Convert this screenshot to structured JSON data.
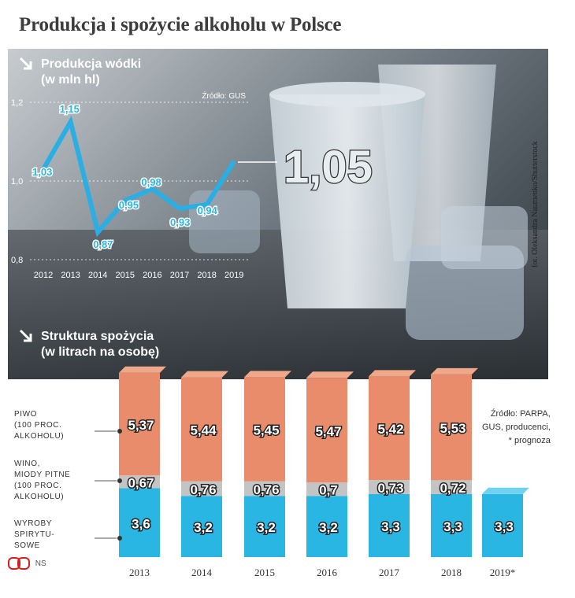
{
  "title": "Produkcja i spożycie alkoholu w Polsce",
  "credit": "fot. Oleksandra Naumenko/Shutterstock",
  "big_value": "1,05",
  "logo_text": "NS",
  "colors": {
    "line": "#2aaee3",
    "beer": "#e98c6b",
    "beer_top": "#f0a88a",
    "wine": "#c4c4c4",
    "spirits": "#29b6e2",
    "spirits_top": "#6fd3f0"
  },
  "chart_data": [
    {
      "type": "line",
      "title": "Produkcja wódki",
      "subtitle": "(w mln hl)",
      "source": "Źródło: GUS",
      "x": [
        "2012",
        "2013",
        "2014",
        "2015",
        "2016",
        "2017",
        "2018",
        "2019"
      ],
      "series": [
        {
          "values": [
            1.03,
            1.15,
            0.87,
            0.95,
            0.98,
            0.93,
            0.94,
            1.05
          ]
        }
      ],
      "value_labels": [
        "1,03",
        "1,15",
        "0,87",
        "0,95",
        "0,98",
        "0,93",
        "0,94",
        ""
      ],
      "yticks": [
        "0,8",
        "1,0",
        "1,2"
      ],
      "ylim": [
        0.8,
        1.2
      ],
      "grid": true
    },
    {
      "type": "bar",
      "stacked": true,
      "title": "Struktura spożycia",
      "subtitle": "(w litrach na osobę)",
      "source_lines": [
        "Źródło: PARPA,",
        "GUS, producenci,",
        "* prognoza"
      ],
      "categories": [
        "2013",
        "2014",
        "2015",
        "2016",
        "2017",
        "2018",
        "2019*"
      ],
      "series": [
        {
          "name": "WYROBY SPIRYTUSOWE",
          "values": [
            3.6,
            3.2,
            3.2,
            3.2,
            3.3,
            3.3,
            3.3
          ],
          "labels": [
            "3,6",
            "3,2",
            "3,2",
            "3,2",
            "3,3",
            "3,3",
            "3,3"
          ]
        },
        {
          "name": "WINO, MIODY PITNE (100 PROC. ALKOHOLU)",
          "values": [
            0.67,
            0.76,
            0.76,
            0.7,
            0.73,
            0.72,
            null
          ],
          "labels": [
            "0,67",
            "0,76",
            "0,76",
            "0,7",
            "0,73",
            "0,72",
            ""
          ]
        },
        {
          "name": "PIWO (100 PROC. ALKOHOLU)",
          "values": [
            5.37,
            5.44,
            5.45,
            5.47,
            5.42,
            5.53,
            null
          ],
          "labels": [
            "5,37",
            "5,44",
            "5,45",
            "5,47",
            "5,42",
            "5,53",
            ""
          ]
        }
      ],
      "legend_lines": [
        [
          "PIWO",
          "(100 PROC.",
          "ALKOHOLU)"
        ],
        [
          "WINO,",
          "MIODY PITNE",
          "(100 PROC.",
          "ALKOHOLU)"
        ],
        [
          "WYROBY",
          "SPIRYTU-",
          "SOWE"
        ]
      ]
    }
  ]
}
